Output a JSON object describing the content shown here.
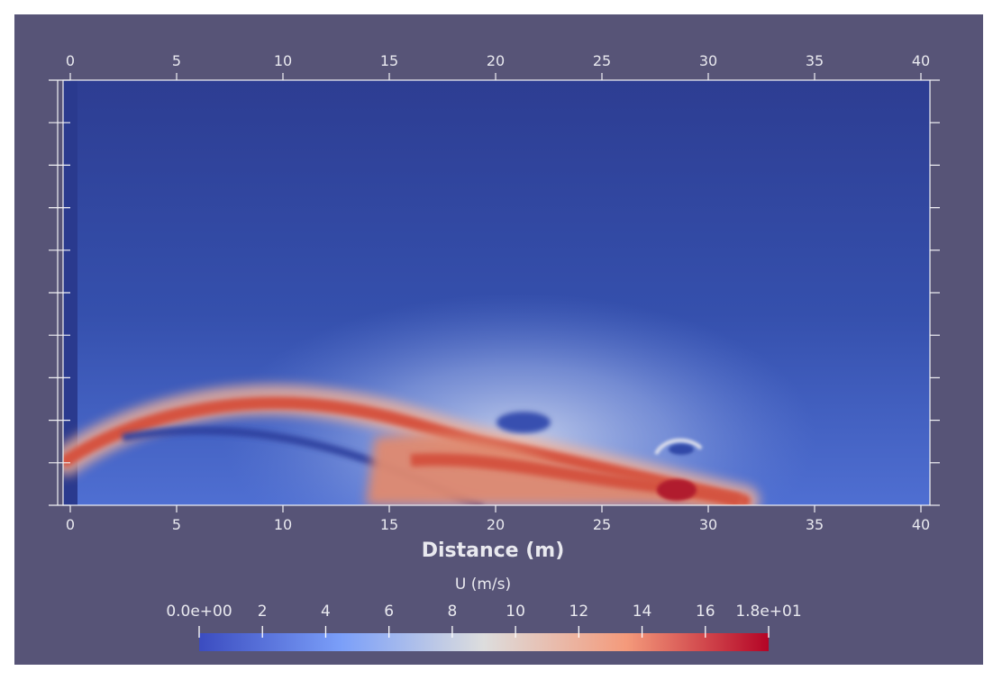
{
  "chart_data": {
    "type": "heatmap",
    "title": "",
    "xlabel": "Distance (m)",
    "ylabel": "",
    "x_ticks": [
      0,
      5,
      10,
      15,
      20,
      25,
      30,
      35,
      40
    ],
    "xlim": [
      0,
      40
    ],
    "y_tick_count": 11,
    "grid": false,
    "scalar": {
      "name": "U (m/s)",
      "range": [
        0,
        18
      ],
      "colormap": [
        "#3b4cc0",
        "#dddddd",
        "#b40426"
      ],
      "tick_labels": [
        "0.0e+00",
        "2",
        "4",
        "6",
        "8",
        "10",
        "12",
        "14",
        "16",
        "1.8e+01"
      ],
      "tick_values": [
        0,
        2,
        4,
        6,
        8,
        10,
        12,
        14,
        16,
        18
      ]
    },
    "field_features": [
      {
        "feature": "jet",
        "x_start": 0.3,
        "x_end": 31.5,
        "peak_value": 14
      },
      {
        "feature": "vortex",
        "x": 20.5,
        "value": 3
      },
      {
        "feature": "vortex",
        "x": 28.5,
        "value": 2
      },
      {
        "feature": "impact-zone",
        "x_start": 15,
        "x_end": 31.5,
        "peak_value": 18
      }
    ]
  }
}
